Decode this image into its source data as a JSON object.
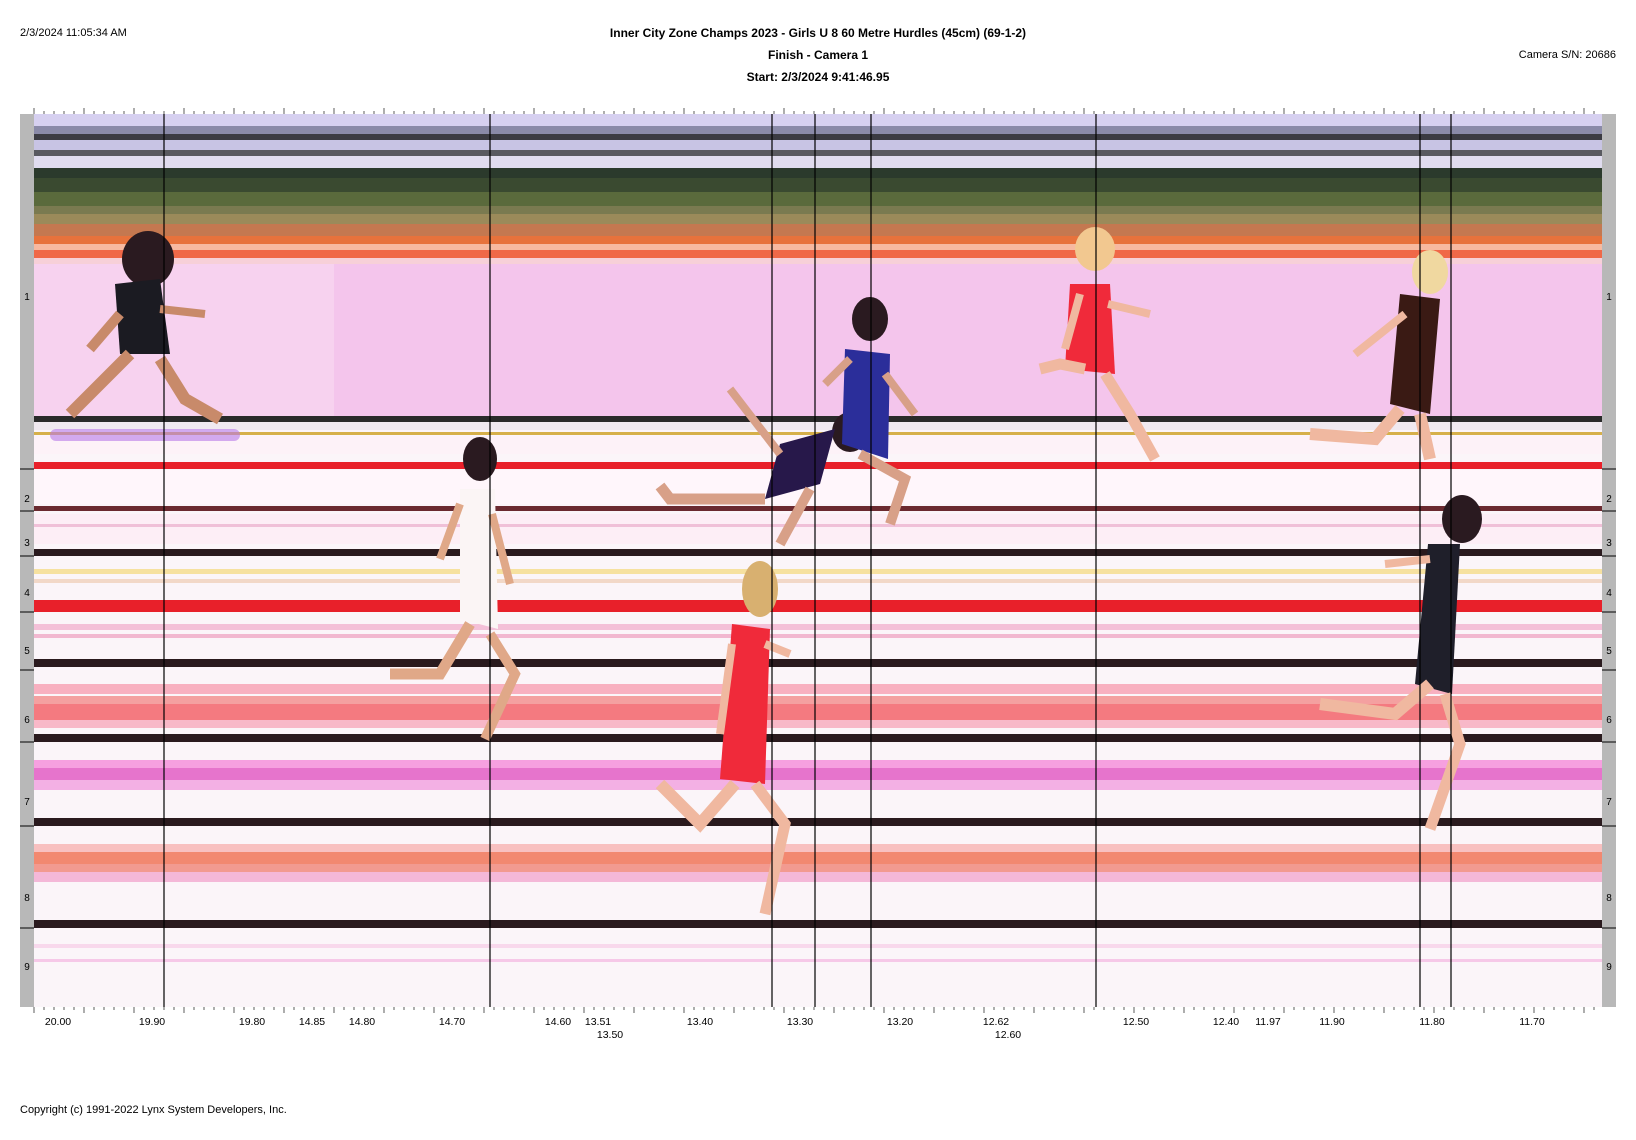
{
  "header": {
    "datetime": "2/3/2024 11:05:34 AM",
    "title": "Inner City Zone Champs 2023 - Girls U 8 60 Metre Hurdles (45cm) (69-1-2)",
    "subtitle": "Finish - Camera 1",
    "start": "Start: 2/3/2024 9:41:46.95",
    "camera_sn": "Camera S/N: 20686"
  },
  "lanes": [
    "1",
    "2",
    "3",
    "4",
    "5",
    "6",
    "7",
    "8",
    "9"
  ],
  "time_labels": [
    {
      "label": "20.00",
      "row": 1
    },
    {
      "label": "19.90",
      "row": 1
    },
    {
      "label": "19.80",
      "row": 1
    },
    {
      "label": "14.85",
      "row": 1
    },
    {
      "label": "14.80",
      "row": 1
    },
    {
      "label": "14.70",
      "row": 1
    },
    {
      "label": "14.60",
      "row": 1
    },
    {
      "label": "13.51",
      "row": 1
    },
    {
      "label": "13.50",
      "row": 2
    },
    {
      "label": "13.40",
      "row": 1
    },
    {
      "label": "13.30",
      "row": 1
    },
    {
      "label": "13.20",
      "row": 1
    },
    {
      "label": "12.62",
      "row": 1
    },
    {
      "label": "12.60",
      "row": 2
    },
    {
      "label": "12.50",
      "row": 1
    },
    {
      "label": "12.40",
      "row": 1
    },
    {
      "label": "11.97",
      "row": 1
    },
    {
      "label": "11.90",
      "row": 1
    },
    {
      "label": "11.80",
      "row": 1
    },
    {
      "label": "11.70",
      "row": 1
    }
  ],
  "colors": {
    "lane_divider_red": "#e8202a",
    "lane_divider_dark": "#2a1a1e",
    "track_pink": "#f3c3ea",
    "frame_gray": "#b8b8b8"
  },
  "footer": {
    "copyright": "Copyright (c) 1991-2022 Lynx System Developers, Inc."
  }
}
